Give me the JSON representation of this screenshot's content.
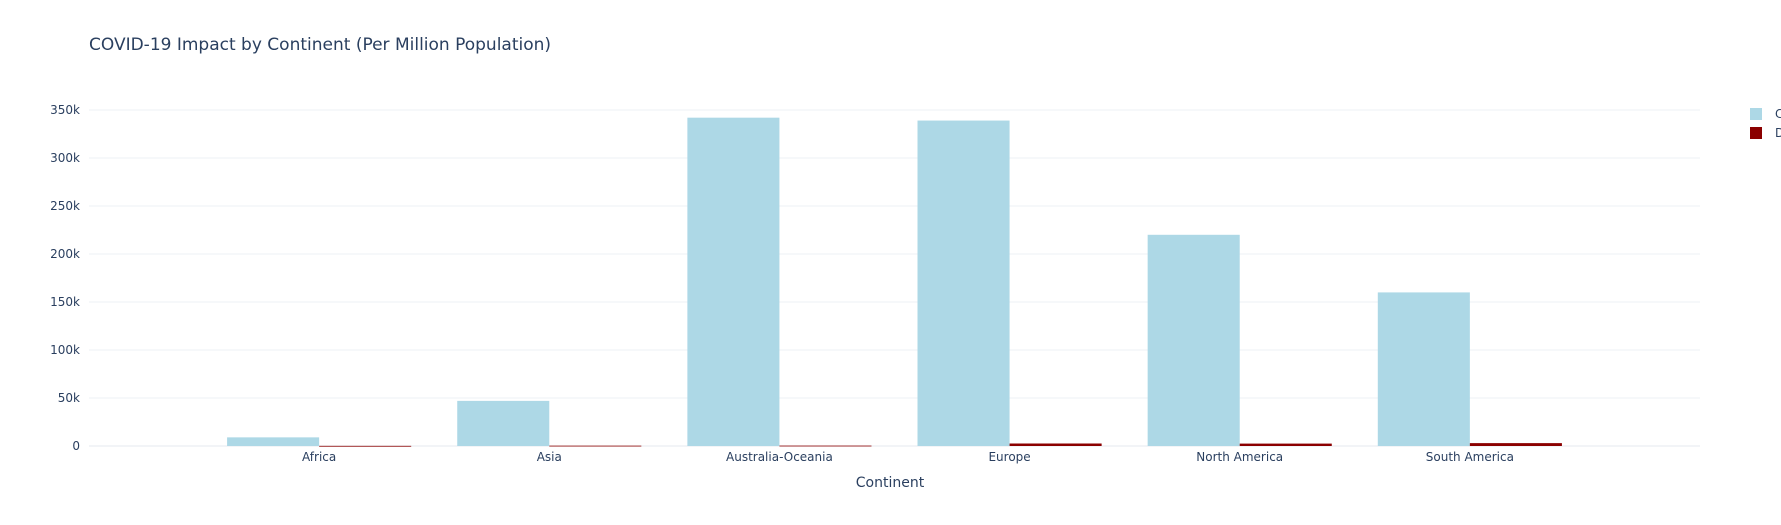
{
  "chart_data": {
    "type": "bar",
    "title": "COVID-19 Impact by Continent (Per Million Population)",
    "xlabel": "Continent",
    "ylabel": "",
    "categories": [
      "Africa",
      "Asia",
      "Australia-Oceania",
      "Europe",
      "North America",
      "South America"
    ],
    "series": [
      {
        "name": "C",
        "color": "#add8e6",
        "values": [
          9000,
          47000,
          342000,
          339000,
          220000,
          160000
        ]
      },
      {
        "name": "D",
        "color": "#8b0000",
        "values": [
          150,
          350,
          400,
          2600,
          2500,
          3000
        ]
      }
    ],
    "ylim": [
      0,
      350000
    ],
    "yticks": [
      0,
      50000,
      100000,
      150000,
      200000,
      250000,
      300000,
      350000
    ],
    "ytick_labels": [
      "0",
      "50k",
      "100k",
      "150k",
      "200k",
      "250k",
      "300k",
      "350k"
    ],
    "grid": true,
    "legend_position": "top-right"
  }
}
